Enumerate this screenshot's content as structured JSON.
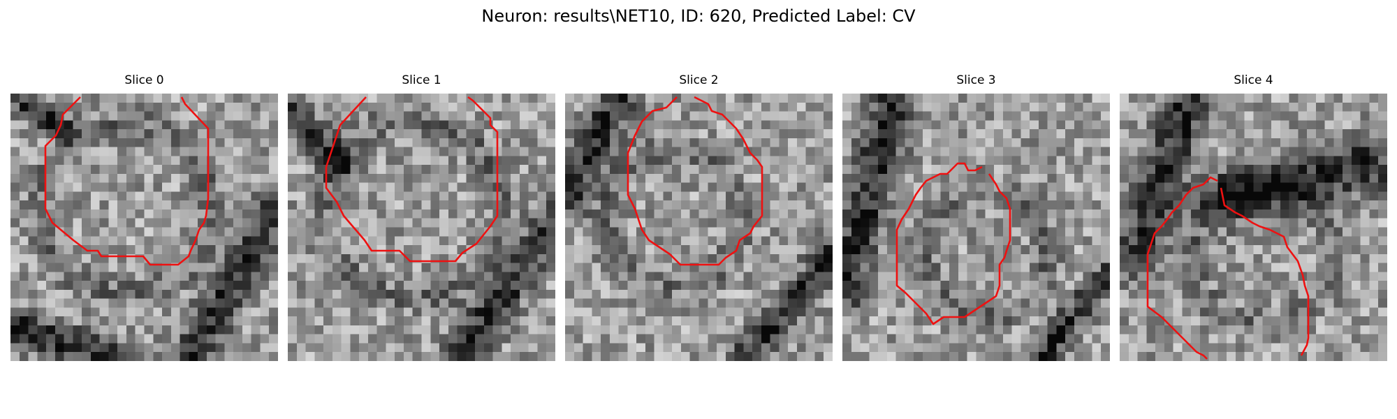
{
  "figure": {
    "title": "Neuron: results\\NET10, ID: 620, Predicted Label: CV"
  },
  "panels": [
    {
      "title": "Slice 0"
    },
    {
      "title": "Slice 1"
    },
    {
      "title": "Slice 2"
    },
    {
      "title": "Slice 3"
    },
    {
      "title": "Slice 4"
    }
  ],
  "colors": {
    "contour": "#ee1111"
  }
}
